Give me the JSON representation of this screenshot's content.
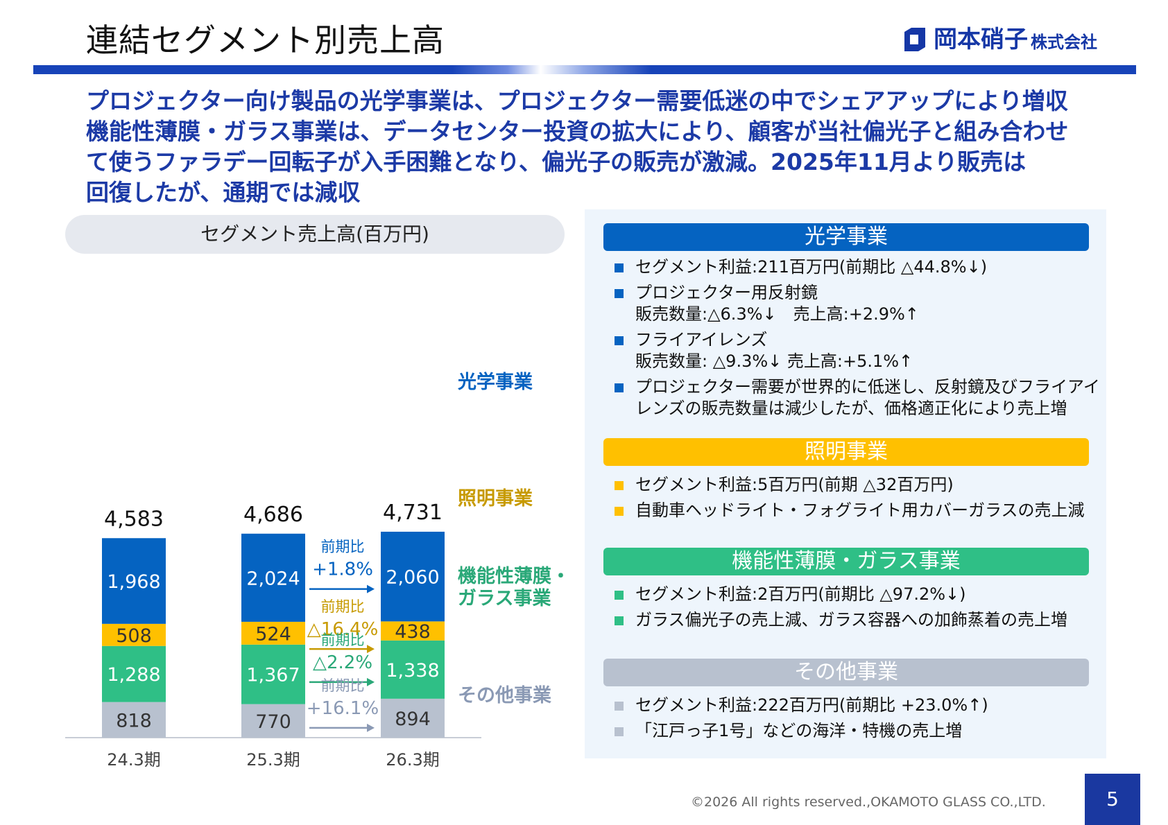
{
  "page": {
    "title": "連結セグメント別売上高",
    "logo_main": "岡本硝子",
    "logo_sub": "株式会社",
    "headline_lines": [
      "プロジェクター向け製品の光学事業は、プロジェクター需要低迷の中でシェアアップにより増収",
      "機能性薄膜・ガラス事業は、データセンター投資の拡大により、顧客が当社偏光子と組み合わせ",
      "て使うファラデー回転子が入手困難となり、偏光子の販売が激減。2025年11月より販売は",
      "回復したが、通期では減収"
    ],
    "footer": "©2026  All rights reserved.,OKAMOTO GLASS CO.,LTD.",
    "page_number": "5"
  },
  "chart_data": {
    "type": "bar",
    "stacked": true,
    "title": "セグメント売上高(百万円)",
    "categories": [
      "24.3期",
      "25.3期",
      "26.3期"
    ],
    "totals": [
      "4,583",
      "4,686",
      "4,731"
    ],
    "series": [
      {
        "name": "その他事業",
        "color": "#b8c1cf",
        "label_color": "#333333",
        "values": [
          818,
          770,
          894
        ],
        "labels": [
          "818",
          "770",
          "894"
        ]
      },
      {
        "name": "機能性薄膜・ガラス事業",
        "color": "#2fbf86",
        "label_color": "#ffffff",
        "values": [
          1288,
          1367,
          1338
        ],
        "labels": [
          "1,288",
          "1,367",
          "1,338"
        ]
      },
      {
        "name": "照明事業",
        "color": "#ffc000",
        "label_color": "#333333",
        "values": [
          508,
          524,
          438
        ],
        "labels": [
          "508",
          "524",
          "438"
        ]
      },
      {
        "name": "光学事業",
        "color": "#0563c1",
        "label_color": "#ffffff",
        "values": [
          1968,
          2024,
          2060
        ],
        "labels": [
          "1,968",
          "2,024",
          "2,060"
        ]
      }
    ],
    "series_labels": [
      {
        "lines": [
          "光学事業"
        ],
        "color": "#0563c1"
      },
      {
        "lines": [
          "照明事業"
        ],
        "color": "#c79a00"
      },
      {
        "lines": [
          "機能性薄膜・",
          "ガラス事業"
        ],
        "color": "#2aa878"
      },
      {
        "lines": [
          "その他事業"
        ],
        "color": "#8a99b4"
      }
    ],
    "yoy": [
      {
        "label": "前期比",
        "value": "+1.8%",
        "color": "#0563c1"
      },
      {
        "label": "前期比",
        "value": "△16.4%",
        "color": "#c79a00"
      },
      {
        "label": "前期比",
        "value": "△2.2%",
        "color": "#2aa878"
      },
      {
        "label": "前期比",
        "value": "+16.1%",
        "color": "#8a99b4"
      }
    ]
  },
  "segments": [
    {
      "name": "光学事業",
      "color": "#0563c1",
      "bullets": [
        [
          "セグメント利益:211百万円(前期比 △44.8%↓)"
        ],
        [
          "プロジェクター用反射鏡",
          "販売数量:△6.3%↓　売上高:+2.9%↑"
        ],
        [
          "フライアイレンズ",
          "販売数量: △9.3%↓  売上高:+5.1%↑"
        ],
        [
          "プロジェクター需要が世界的に低迷し、反射鏡及びフライアイ",
          "レンズの販売数量は減少したが、価格適正化により売上増"
        ]
      ]
    },
    {
      "name": "照明事業",
      "color": "#ffc000",
      "bullets": [
        [
          "セグメント利益:5百万円(前期 △32百万円)"
        ],
        [
          "自動車ヘッドライト・フォグライト用カバーガラスの売上減"
        ]
      ]
    },
    {
      "name": "機能性薄膜・ガラス事業",
      "color": "#2fbf86",
      "bullets": [
        [
          "セグメント利益:2百万円(前期比 △97.2%↓)"
        ],
        [
          "ガラス偏光子の売上減、ガラス容器への加飾蒸着の売上増"
        ]
      ]
    },
    {
      "name": "その他事業",
      "color": "#b8c1cf",
      "bullets": [
        [
          "セグメント利益:222百万円(前期比 +23.0%↑)"
        ],
        [
          "「江戸っ子1号」などの海洋・特機の売上増"
        ]
      ]
    }
  ]
}
